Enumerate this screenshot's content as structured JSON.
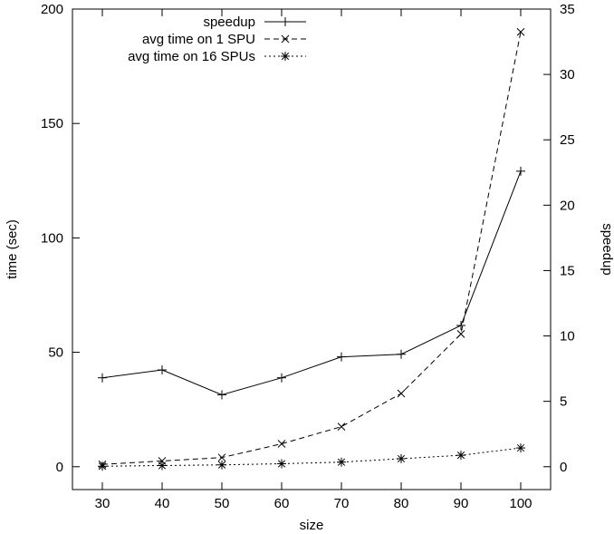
{
  "chart_data": {
    "type": "line",
    "title": "",
    "xlabel": "size",
    "ylabel_left": "time (sec)",
    "ylabel_right": "speedup",
    "x": [
      30,
      40,
      50,
      60,
      70,
      80,
      90,
      100
    ],
    "xlim": [
      25,
      105
    ],
    "xticks": [
      30,
      40,
      50,
      60,
      70,
      80,
      90,
      100
    ],
    "ylim_left": [
      -10,
      200
    ],
    "yticks_left": [
      0,
      50,
      100,
      150,
      200
    ],
    "ylim_right": [
      -1.75,
      35
    ],
    "yticks_right": [
      0,
      5,
      10,
      15,
      20,
      25,
      30,
      35
    ],
    "grid": false,
    "legend_position": "top-center",
    "series": [
      {
        "name": "speedup",
        "axis": "right",
        "marker": "plus",
        "dash": "solid",
        "values": [
          6.8,
          7.4,
          5.5,
          6.8,
          8.4,
          8.6,
          10.8,
          22.6
        ]
      },
      {
        "name": "avg time on 1 SPU",
        "axis": "left",
        "marker": "cross",
        "dash": "dashed",
        "values": [
          1.0,
          2.5,
          4.0,
          10.0,
          17.5,
          32.0,
          58.0,
          190.0
        ]
      },
      {
        "name": "avg time on 16 SPUs",
        "axis": "left",
        "marker": "star",
        "dash": "dotted",
        "values": [
          0.2,
          0.5,
          0.8,
          1.3,
          2.0,
          3.5,
          5.0,
          8.2
        ]
      }
    ]
  }
}
